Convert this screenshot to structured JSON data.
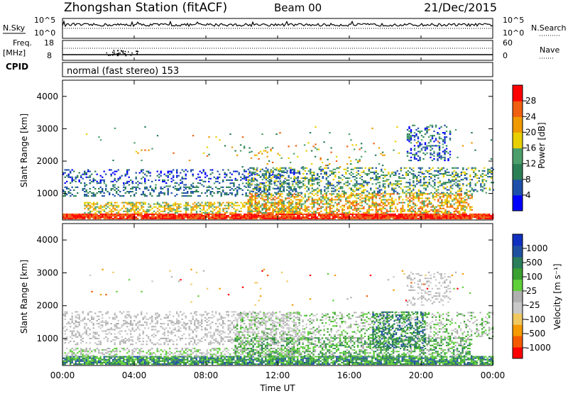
{
  "header": {
    "station": "Zhongshan Station (fitACF)",
    "beam": "Beam 00",
    "date": "21/Dec/2015"
  },
  "panel_labels": {
    "nsky": "N.Sky",
    "freq": "Freq.",
    "freq_unit": "[MHz]",
    "cpid": "CPID",
    "nsearch": "N.Search",
    "nave": "Nave",
    "cpid_value": "normal (fast stereo) 153"
  },
  "noise_panel": {
    "left_ticks": [
      "10^5",
      "10^0"
    ],
    "right_ticks": [
      "10^5",
      "10^0"
    ]
  },
  "freq_panel": {
    "left_ticks": [
      "18",
      "8"
    ],
    "right_ticks": [
      "60",
      "0"
    ]
  },
  "colors": {
    "power": [
      "#0000ff",
      "#1e4faa",
      "#2b7f55",
      "#4c9f6b",
      "#e8d000",
      "#ef9a00",
      "#f06010",
      "#ff0000"
    ],
    "velocity": [
      "#ff0000",
      "#f55a00",
      "#f59a00",
      "#f0c860",
      "#c8c8c8",
      "#b0b0b0",
      "#5fcf3a",
      "#3aa030",
      "#2a7e5a",
      "#2050a0",
      "#1030c0"
    ]
  },
  "chart_data": [
    {
      "type": "heatmap",
      "xlabel": "Time UT",
      "ylabel": "Slant Range [km]",
      "x_ticks": [
        "00:00",
        "04:00",
        "08:00",
        "12:00",
        "16:00",
        "20:00",
        "00:00"
      ],
      "y_ticks": [
        1000,
        2000,
        3000,
        4000
      ],
      "ylim": [
        180,
        4500
      ],
      "colorbar": {
        "label": "Power [dB]",
        "ticks": [
          4,
          8,
          12,
          16,
          20,
          24,
          28
        ],
        "range": [
          0,
          32
        ]
      }
    },
    {
      "type": "heatmap",
      "xlabel": "Time UT",
      "ylabel": "Slant Range [km]",
      "x_ticks": [
        "00:00",
        "04:00",
        "08:00",
        "12:00",
        "16:00",
        "20:00",
        "00:00"
      ],
      "y_ticks": [
        1000,
        2000,
        3000,
        4000
      ],
      "ylim": [
        180,
        4500
      ],
      "colorbar": {
        "label": "Velocity [m s⁻¹]",
        "ticks": [
          "1000",
          "500",
          "100",
          "25",
          "-25",
          "-100",
          "-500",
          "-1000"
        ]
      }
    }
  ]
}
